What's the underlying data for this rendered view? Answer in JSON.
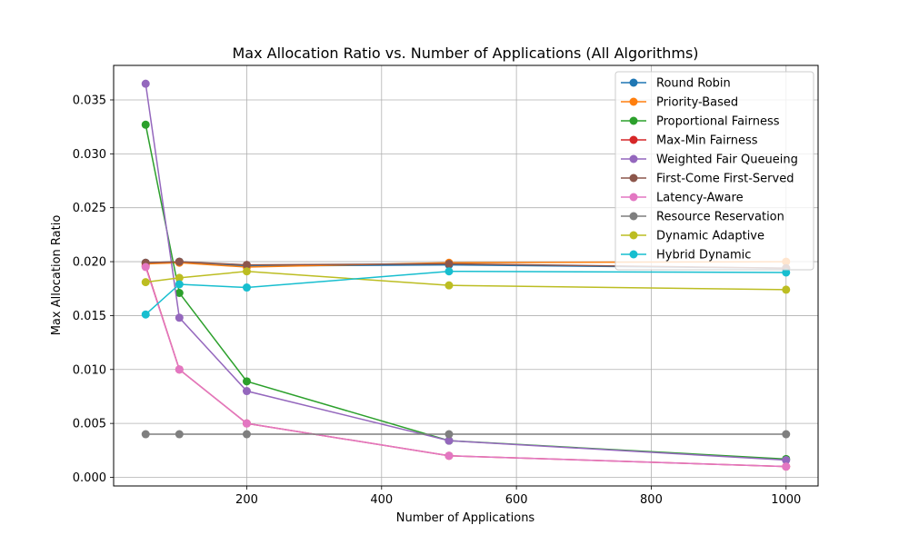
{
  "chart_data": {
    "type": "line",
    "title": "Max Allocation Ratio vs. Number of Applications (All Algorithms)",
    "xlabel": "Number of Applications",
    "ylabel": "Max Allocation Ratio",
    "x": [
      50,
      100,
      200,
      500,
      1000
    ],
    "xlim": [
      2.5,
      1047.5
    ],
    "ylim": [
      -0.0008,
      0.0382
    ],
    "xticks": [
      200,
      400,
      600,
      800,
      1000
    ],
    "xtick_labels": [
      "200",
      "400",
      "600",
      "800",
      "1000"
    ],
    "yticks": [
      0.0,
      0.005,
      0.01,
      0.015,
      0.02,
      0.025,
      0.03,
      0.035
    ],
    "ytick_labels": [
      "0.000",
      "0.005",
      "0.010",
      "0.015",
      "0.020",
      "0.025",
      "0.030",
      "0.035"
    ],
    "grid": true,
    "legend_position": "top-right",
    "series": [
      {
        "name": "Round Robin",
        "color": "#1f77b4",
        "values": [
          0.0199,
          0.02,
          0.0196,
          0.0197,
          0.0194
        ]
      },
      {
        "name": "Priority-Based",
        "color": "#ff7f0e",
        "values": [
          0.0198,
          0.0199,
          0.0195,
          0.0199,
          0.02
        ]
      },
      {
        "name": "Proportional Fairness",
        "color": "#2ca02c",
        "values": [
          0.0327,
          0.0171,
          0.0089,
          0.0034,
          0.0017
        ]
      },
      {
        "name": "Max-Min Fairness",
        "color": "#d62728",
        "values": [
          0.0196,
          0.01,
          0.005,
          0.002,
          0.001
        ]
      },
      {
        "name": "Weighted Fair Queueing",
        "color": "#9467bd",
        "values": [
          0.0365,
          0.0148,
          0.008,
          0.0034,
          0.0016
        ]
      },
      {
        "name": "First-Come First-Served",
        "color": "#8c564b",
        "values": [
          0.0199,
          0.02,
          0.0197,
          0.0198,
          0.0194
        ]
      },
      {
        "name": "Latency-Aware",
        "color": "#e377c2",
        "values": [
          0.0195,
          0.01,
          0.005,
          0.002,
          0.001
        ]
      },
      {
        "name": "Resource Reservation",
        "color": "#7f7f7f",
        "values": [
          0.004,
          0.004,
          0.004,
          0.004,
          0.004
        ]
      },
      {
        "name": "Dynamic Adaptive",
        "color": "#bcbd22",
        "values": [
          0.0181,
          0.0185,
          0.0191,
          0.0178,
          0.0174
        ]
      },
      {
        "name": "Hybrid Dynamic",
        "color": "#17becf",
        "values": [
          0.0151,
          0.0179,
          0.0176,
          0.0191,
          0.019
        ]
      }
    ]
  }
}
